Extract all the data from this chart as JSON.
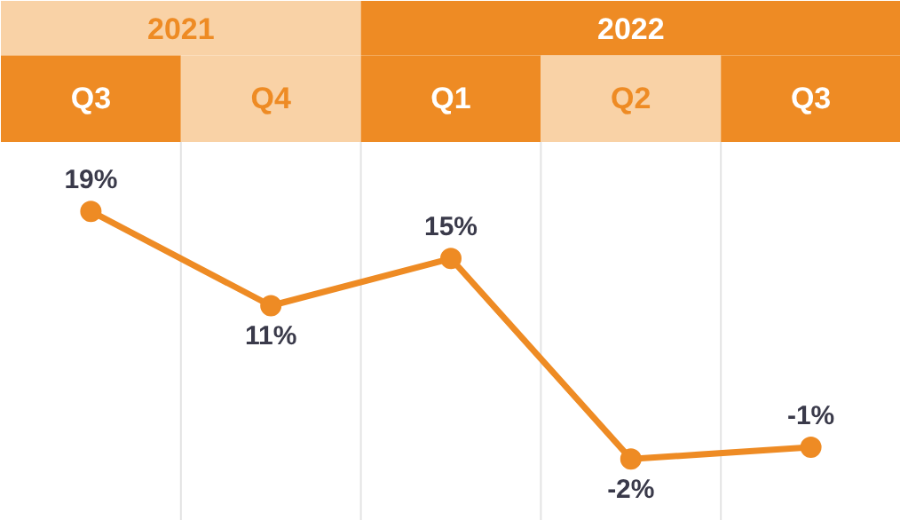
{
  "chart_data": {
    "type": "line",
    "categories": [
      "Q3",
      "Q4",
      "Q1",
      "Q2",
      "Q3"
    ],
    "series": [
      {
        "color": "#ee8b24",
        "values": [
          19,
          11,
          15,
          -2,
          -1
        ],
        "value_labels": [
          "19%",
          "11%",
          "15%",
          "-2%",
          "-1%"
        ]
      }
    ],
    "annotations": [
      "2021",
      "2022"
    ],
    "marker": "circle",
    "line_style": "solid"
  }
}
